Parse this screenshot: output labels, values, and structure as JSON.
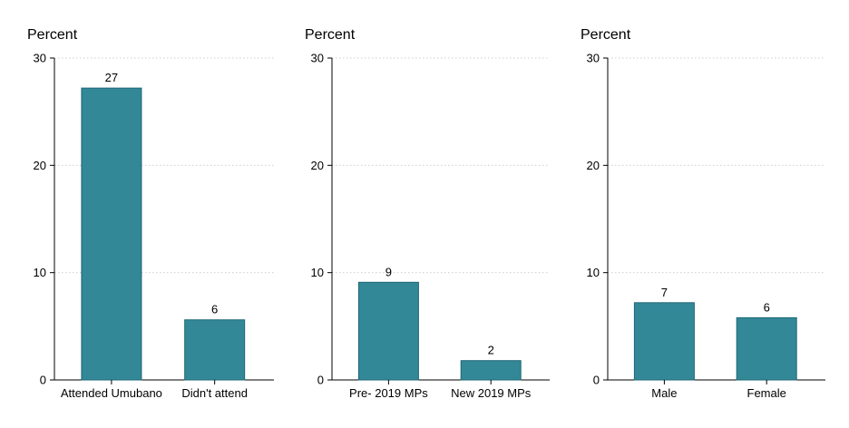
{
  "colors": {
    "bar_fill": "#338898",
    "bar_stroke": "#1f6674",
    "axis": "#000000",
    "grid": "#cfcfcf"
  },
  "chart_data": [
    {
      "type": "bar",
      "title": "Percent",
      "categories": [
        "Attended Umubano",
        "Didn't attend"
      ],
      "values": [
        27.2,
        5.6
      ],
      "data_labels": [
        "27",
        "6"
      ],
      "ylim": [
        0,
        30
      ],
      "yticks": [
        0,
        10,
        20,
        30
      ],
      "grid": true,
      "legend": "none"
    },
    {
      "type": "bar",
      "title": "Percent",
      "categories": [
        "Pre- 2019 MPs",
        "New 2019 MPs"
      ],
      "values": [
        9.1,
        1.8
      ],
      "data_labels": [
        "9",
        "2"
      ],
      "ylim": [
        0,
        30
      ],
      "yticks": [
        0,
        10,
        20,
        30
      ],
      "grid": true,
      "legend": "none"
    },
    {
      "type": "bar",
      "title": "Percent",
      "categories": [
        "Male",
        "Female"
      ],
      "values": [
        7.2,
        5.8
      ],
      "data_labels": [
        "7",
        "6"
      ],
      "ylim": [
        0,
        30
      ],
      "yticks": [
        0,
        10,
        20,
        30
      ],
      "grid": true,
      "legend": "none"
    }
  ]
}
